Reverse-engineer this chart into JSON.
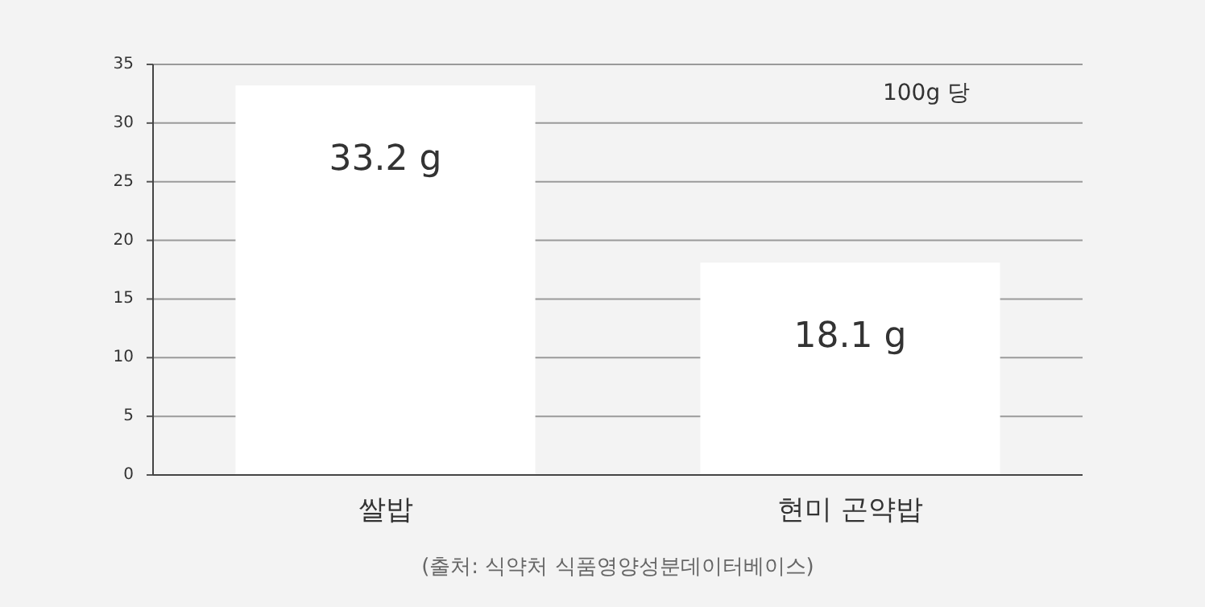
{
  "chart_data": {
    "type": "bar",
    "categories": [
      "쌀밥",
      "현미 곤약밥"
    ],
    "values": [
      33.2,
      18.1
    ],
    "value_labels": [
      "33.2 g",
      "18.1 g"
    ],
    "color": "#ffffff",
    "ylim": [
      0,
      35
    ],
    "yticks": [
      0,
      5,
      10,
      15,
      20,
      25,
      30,
      35
    ],
    "grid": "y",
    "annotations": [
      "100g 당",
      "(출처: 식약처 식품영양성분데이터베이스)"
    ]
  }
}
